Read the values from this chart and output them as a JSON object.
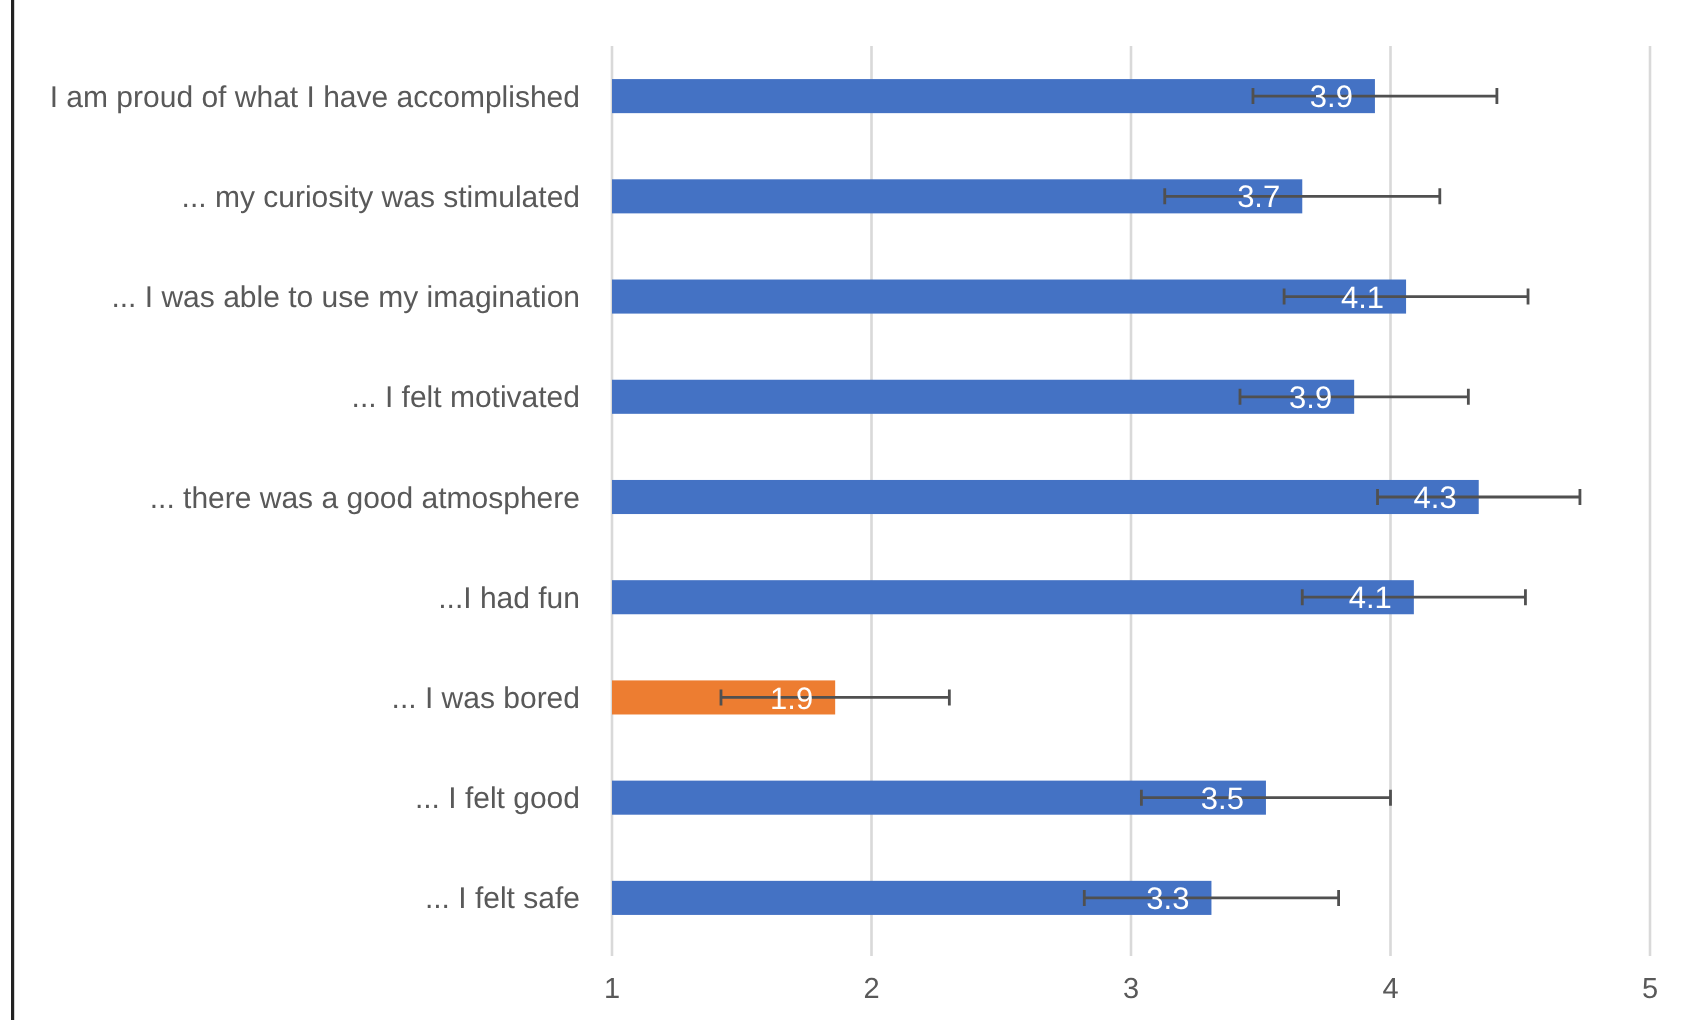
{
  "chart_data": {
    "type": "bar",
    "orientation": "horizontal",
    "categories": [
      "I am proud of what I have accomplished",
      "... my curiosity was stimulated",
      "... I was able to use my imagination",
      "... I felt motivated",
      "... there was a good atmosphere",
      "...I had fun",
      "... I was bored",
      "... I felt good",
      "... I felt safe"
    ],
    "values": [
      3.94,
      3.66,
      4.06,
      3.86,
      4.34,
      4.09,
      1.86,
      3.52,
      3.31
    ],
    "colors": [
      "#4472c4",
      "#4472c4",
      "#4472c4",
      "#4472c4",
      "#4472c4",
      "#4472c4",
      "#ed7d31",
      "#4472c4",
      "#4472c4"
    ],
    "errors": [
      0.47,
      0.53,
      0.47,
      0.44,
      0.39,
      0.43,
      0.44,
      0.48,
      0.49
    ],
    "value_labels": [
      "3.9",
      "3.7",
      "4.1",
      "3.9",
      "4.3",
      "4.1",
      "1.9",
      "3.5",
      "3.3"
    ],
    "xlim": [
      1,
      5
    ],
    "xticks": [
      1,
      2,
      3,
      4,
      5
    ],
    "grid": "x"
  }
}
